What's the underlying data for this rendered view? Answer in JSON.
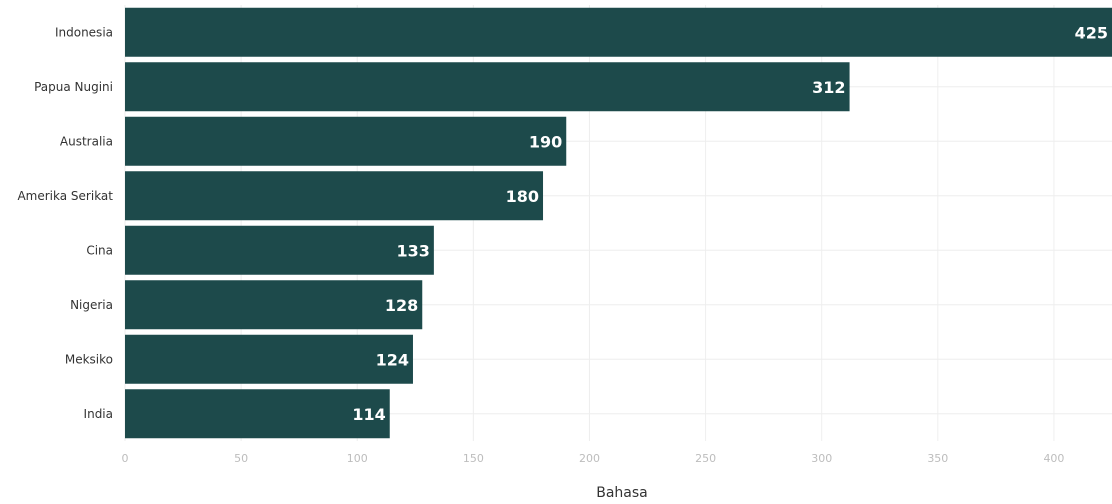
{
  "chart_data": {
    "type": "bar",
    "orientation": "horizontal",
    "categories": [
      "Indonesia",
      "Papua Nugini",
      "Australia",
      "Amerika Serikat",
      "Cina",
      "Nigeria",
      "Meksiko",
      "India"
    ],
    "values": [
      425,
      312,
      190,
      180,
      133,
      128,
      124,
      114
    ],
    "xlabel": "Bahasa",
    "ylabel": "",
    "xlim": [
      0,
      425
    ],
    "xticks": [
      0,
      50,
      100,
      150,
      200,
      250,
      300,
      350,
      400
    ],
    "grid": true,
    "legend": "none",
    "colors": {
      "bar": "#1d4a4b",
      "value_label": "#ffffff",
      "grid": "#eeeeee"
    }
  }
}
